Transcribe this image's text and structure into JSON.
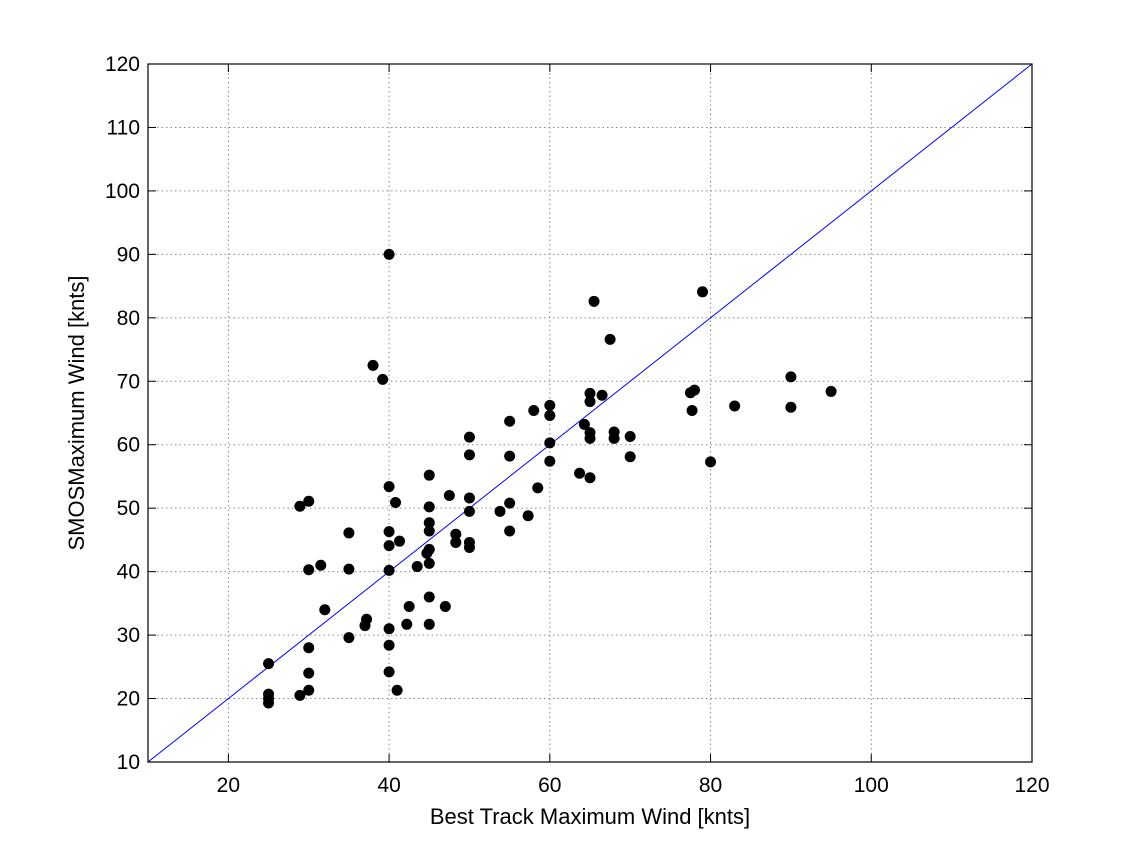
{
  "chart_data": {
    "type": "scatter",
    "title": "",
    "xlabel": "Best Track Maximum Wind [knts]",
    "ylabel": "SMOSMaximum Wind [knts]",
    "xlim": [
      10,
      120
    ],
    "ylim": [
      10,
      120
    ],
    "xticks": [
      20,
      40,
      60,
      80,
      100,
      120
    ],
    "yticks": [
      10,
      20,
      30,
      40,
      50,
      60,
      70,
      80,
      90,
      100,
      110,
      120
    ],
    "grid": true,
    "legend": "none",
    "point_color": "#000000",
    "reference_line": {
      "from": [
        10,
        10
      ],
      "to": [
        120,
        120
      ],
      "color": "#0000ff"
    },
    "series": [
      {
        "points": [
          [
            25,
            25.5
          ],
          [
            25,
            20.7
          ],
          [
            25,
            20
          ],
          [
            25,
            19.3
          ],
          [
            28.9,
            20.5
          ],
          [
            30,
            21.3
          ],
          [
            30,
            24
          ],
          [
            30,
            28
          ],
          [
            30,
            40.3
          ],
          [
            28.9,
            50.3
          ],
          [
            30,
            51.1
          ],
          [
            31.5,
            41
          ],
          [
            32,
            34
          ],
          [
            35,
            29.6
          ],
          [
            35,
            40.4
          ],
          [
            35,
            46.1
          ],
          [
            37,
            31.5
          ],
          [
            37.2,
            32.5
          ],
          [
            38,
            72.5
          ],
          [
            39.2,
            70.3
          ],
          [
            40,
            90
          ],
          [
            40,
            31
          ],
          [
            40,
            28.4
          ],
          [
            40,
            24.2
          ],
          [
            40,
            40.2
          ],
          [
            40,
            44.1
          ],
          [
            40,
            46.3
          ],
          [
            40,
            53.4
          ],
          [
            40.8,
            50.9
          ],
          [
            41,
            21.3
          ],
          [
            41.3,
            44.8
          ],
          [
            42.2,
            31.7
          ],
          [
            42.5,
            34.5
          ],
          [
            43.5,
            40.8
          ],
          [
            44.7,
            42.9
          ],
          [
            45,
            31.7
          ],
          [
            45,
            36
          ],
          [
            45,
            41.3
          ],
          [
            45,
            43.5
          ],
          [
            45,
            46.4
          ],
          [
            45,
            47.7
          ],
          [
            45,
            50.2
          ],
          [
            45,
            55.2
          ],
          [
            47,
            34.5
          ],
          [
            47.5,
            52
          ],
          [
            48.3,
            44.6
          ],
          [
            48.3,
            45.9
          ],
          [
            50,
            43.8
          ],
          [
            50,
            44.6
          ],
          [
            50,
            49.5
          ],
          [
            50,
            51.6
          ],
          [
            50,
            58.4
          ],
          [
            50,
            61.2
          ],
          [
            53.8,
            49.5
          ],
          [
            55,
            46.4
          ],
          [
            55,
            50.8
          ],
          [
            55,
            58.2
          ],
          [
            55,
            63.7
          ],
          [
            57.3,
            48.8
          ],
          [
            58,
            65.4
          ],
          [
            58.5,
            53.2
          ],
          [
            60,
            57.4
          ],
          [
            60,
            60.3
          ],
          [
            60,
            64.6
          ],
          [
            60,
            66.2
          ],
          [
            63.7,
            55.5
          ],
          [
            64.3,
            63.2
          ],
          [
            65,
            54.8
          ],
          [
            65,
            61
          ],
          [
            65,
            61.9
          ],
          [
            65,
            66.8
          ],
          [
            65,
            68.1
          ],
          [
            65.5,
            82.6
          ],
          [
            66.5,
            67.8
          ],
          [
            67.5,
            76.6
          ],
          [
            68,
            61
          ],
          [
            68,
            62
          ],
          [
            70,
            58.1
          ],
          [
            70,
            61.3
          ],
          [
            77.5,
            68.2
          ],
          [
            77.7,
            65.4
          ],
          [
            78,
            68.6
          ],
          [
            79,
            84.1
          ],
          [
            80,
            57.3
          ],
          [
            83,
            66.1
          ],
          [
            90,
            65.9
          ],
          [
            90,
            70.7
          ],
          [
            95,
            68.4
          ]
        ]
      }
    ]
  }
}
